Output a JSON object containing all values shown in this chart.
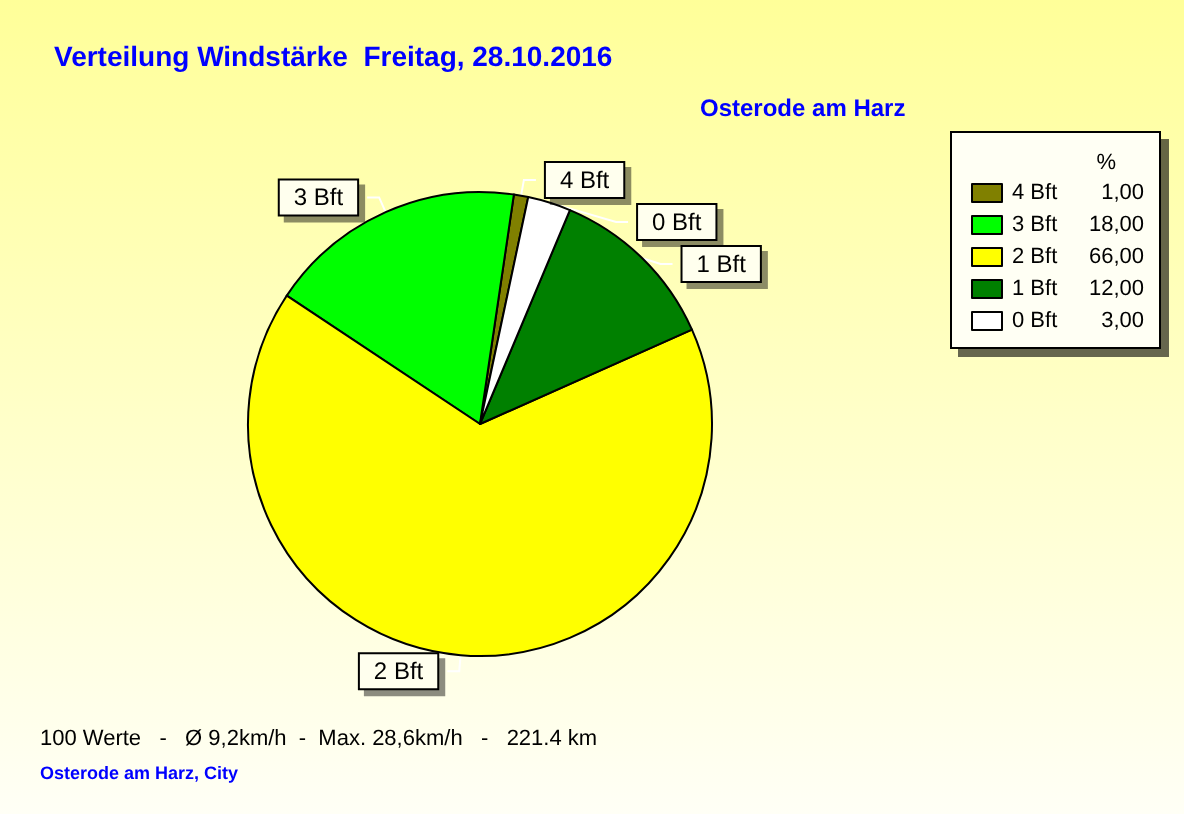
{
  "chart_data": {
    "type": "pie",
    "title": "Verteilung Windstärke  Freitag, 28.10.2016",
    "subtitle": "Osterode am Harz",
    "legend_title": "%",
    "categories": [
      "4 Bft",
      "3 Bft",
      "2 Bft",
      "1 Bft",
      "0 Bft"
    ],
    "values": [
      1,
      18,
      66,
      12,
      3
    ],
    "value_labels": [
      "1,00",
      "18,00",
      "66,00",
      "12,00",
      "3,00"
    ],
    "colors": [
      "#808000",
      "#00ff00",
      "#ffff00",
      "#008000",
      "#ffffff"
    ],
    "legend": "top right",
    "annotations": [
      "100 Werte   -   Ø 9,2km/h  -  Max. 28,6km/h   -   221.4 km",
      "Osterode am Harz, City"
    ]
  }
}
